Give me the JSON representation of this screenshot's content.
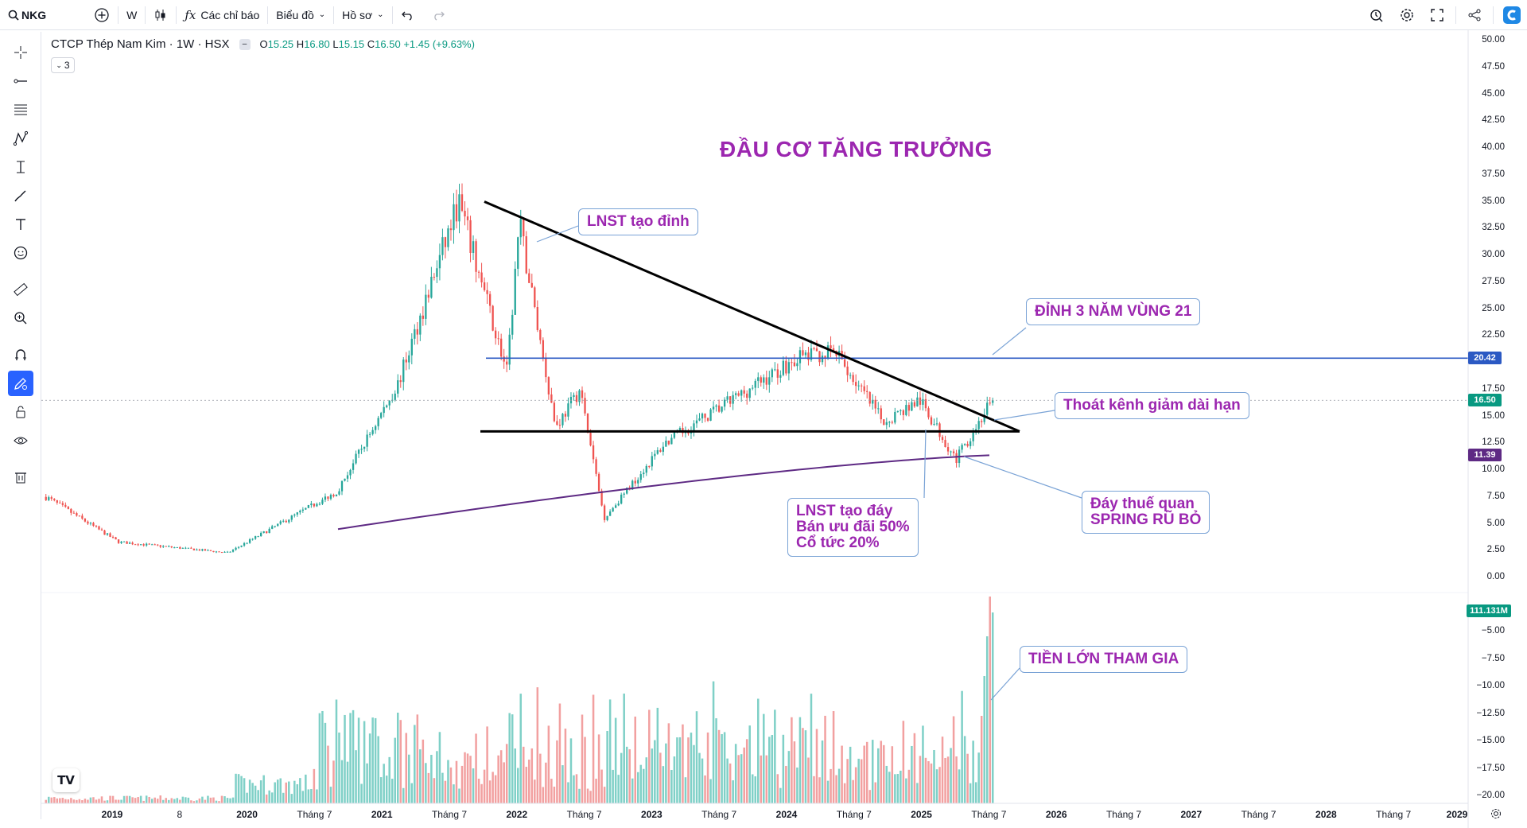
{
  "topbar": {
    "symbol": "NKG",
    "interval": "W",
    "indicators_label": "Các chỉ báo",
    "chart_label": "Biểu đồ",
    "profile_label": "Hồ sơ"
  },
  "legend": {
    "title": "CTCP Thép Nam Kim · 1W · HSX",
    "open_label": "O",
    "open": "15.25",
    "high_label": "H",
    "high": "16.80",
    "low_label": "L",
    "low": "15.15",
    "close_label": "C",
    "close": "16.50",
    "change": "+1.45 (+9.63%)",
    "collapse_count": "3"
  },
  "annotations": {
    "title": "ĐẦU CƠ TĂNG TRƯỞNG",
    "peak": "LNST tạo đỉnh",
    "three_year_top": "ĐỈNH 3 NĂM VÙNG 21",
    "breakout": "Thoát kênh giảm dài hạn",
    "bottom_line1": "LNST tạo đáy",
    "bottom_line2": "Bán ưu đãi 50%",
    "bottom_line3": "Cổ tức 20%",
    "spring_line1": "Đáy thuế quan",
    "spring_line2": "SPRING RŨ BỎ",
    "big_money": "TIỀN LỚN THAM GIA"
  },
  "price_axis": {
    "labels": [
      "50.00",
      "47.50",
      "45.00",
      "42.50",
      "40.00",
      "37.50",
      "35.00",
      "32.50",
      "30.00",
      "27.50",
      "25.00",
      "22.50",
      "17.50",
      "15.00",
      "12.50",
      "10.00",
      "7.50",
      "5.00",
      "2.50",
      "0.00"
    ],
    "volume_labels": [
      "−5.00",
      "−7.50",
      "−10.00",
      "−12.50",
      "−15.00",
      "−17.50",
      "−20.00"
    ],
    "tag_resistance": "20.42",
    "tag_last": "16.50",
    "tag_ma": "11.39",
    "tag_volume": "111.131M"
  },
  "time_axis": {
    "labels": [
      {
        "text": "2019",
        "bold": true
      },
      {
        "text": "8",
        "bold": false
      },
      {
        "text": "2020",
        "bold": true
      },
      {
        "text": "Tháng 7",
        "bold": false
      },
      {
        "text": "2021",
        "bold": true
      },
      {
        "text": "Tháng 7",
        "bold": false
      },
      {
        "text": "2022",
        "bold": true
      },
      {
        "text": "Tháng 7",
        "bold": false
      },
      {
        "text": "2023",
        "bold": true
      },
      {
        "text": "Tháng 7",
        "bold": false
      },
      {
        "text": "2024",
        "bold": true
      },
      {
        "text": "Tháng 7",
        "bold": false
      },
      {
        "text": "2025",
        "bold": true
      },
      {
        "text": "Tháng 7",
        "bold": false
      },
      {
        "text": "2026",
        "bold": true
      },
      {
        "text": "Tháng 7",
        "bold": false
      },
      {
        "text": "2027",
        "bold": true
      },
      {
        "text": "Tháng 7",
        "bold": false
      },
      {
        "text": "2028",
        "bold": true
      },
      {
        "text": "Tháng 7",
        "bold": false
      },
      {
        "text": "2029",
        "bold": true
      }
    ]
  },
  "colors": {
    "up": "#26a69a",
    "down": "#ef5350",
    "vol_up": "#7fd0c7",
    "vol_down": "#f2a0a0",
    "ma": "#5e2a84",
    "resistance": "#2b59c3",
    "accent": "#2962ff",
    "annotation": "#9c27b0"
  },
  "chart_data": {
    "type": "candlestick",
    "price_range": [
      0,
      50
    ],
    "resistance_level": 20.42,
    "support_level": 13.6,
    "key_points": [
      {
        "x": "2019-01",
        "y": 7.5
      },
      {
        "x": "2019-07",
        "y": 3.3
      },
      {
        "x": "2020-04",
        "y": 2.3
      },
      {
        "x": "2021-01",
        "y": 8.0
      },
      {
        "x": "2021-06",
        "y": 18.0
      },
      {
        "x": "2021-11",
        "y": 35.0
      },
      {
        "x": "2022-03",
        "y": 19.0
      },
      {
        "x": "2022-04",
        "y": 33.0
      },
      {
        "x": "2022-07",
        "y": 14.0
      },
      {
        "x": "2022-09",
        "y": 17.5
      },
      {
        "x": "2022-11",
        "y": 5.5
      },
      {
        "x": "2023-04",
        "y": 12.5
      },
      {
        "x": "2024-03",
        "y": 20.5
      },
      {
        "x": "2024-06",
        "y": 21.0
      },
      {
        "x": "2024-10",
        "y": 14.5
      },
      {
        "x": "2025-01",
        "y": 16.5
      },
      {
        "x": "2025-04",
        "y": 11.0
      },
      {
        "x": "2025-07",
        "y": 16.5
      }
    ],
    "ma_last": 11.39,
    "last_close": 16.5,
    "last_volume": "111.131M"
  }
}
